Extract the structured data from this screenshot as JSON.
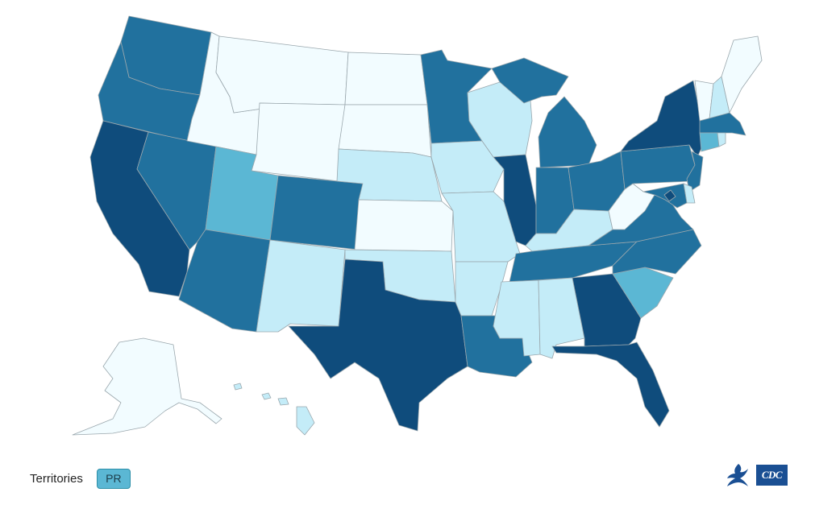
{
  "map": {
    "palette": {
      "level0": "#f2fcff",
      "level1": "#c4ecf8",
      "level2": "#5bb7d4",
      "level3": "#21719e",
      "level4": "#0f4c7c",
      "border": "#9aa7ad"
    },
    "states": [
      {
        "name": "Washington",
        "level": 3
      },
      {
        "name": "Oregon",
        "level": 3
      },
      {
        "name": "California",
        "level": 4
      },
      {
        "name": "Nevada",
        "level": 3
      },
      {
        "name": "Idaho",
        "level": 0
      },
      {
        "name": "Montana",
        "level": 0
      },
      {
        "name": "Wyoming",
        "level": 0
      },
      {
        "name": "Utah",
        "level": 2
      },
      {
        "name": "Arizona",
        "level": 3
      },
      {
        "name": "Colorado",
        "level": 3
      },
      {
        "name": "New Mexico",
        "level": 1
      },
      {
        "name": "North Dakota",
        "level": 0
      },
      {
        "name": "South Dakota",
        "level": 0
      },
      {
        "name": "Nebraska",
        "level": 1
      },
      {
        "name": "Kansas",
        "level": 0
      },
      {
        "name": "Oklahoma",
        "level": 1
      },
      {
        "name": "Texas",
        "level": 4
      },
      {
        "name": "Minnesota",
        "level": 3
      },
      {
        "name": "Iowa",
        "level": 1
      },
      {
        "name": "Missouri",
        "level": 1
      },
      {
        "name": "Arkansas",
        "level": 1
      },
      {
        "name": "Louisiana",
        "level": 3
      },
      {
        "name": "Wisconsin",
        "level": 1
      },
      {
        "name": "Illinois",
        "level": 4
      },
      {
        "name": "Michigan",
        "level": 3
      },
      {
        "name": "Indiana",
        "level": 3
      },
      {
        "name": "Ohio",
        "level": 3
      },
      {
        "name": "Kentucky",
        "level": 1
      },
      {
        "name": "Tennessee",
        "level": 3
      },
      {
        "name": "Mississippi",
        "level": 1
      },
      {
        "name": "Alabama",
        "level": 1
      },
      {
        "name": "Georgia",
        "level": 4
      },
      {
        "name": "Florida",
        "level": 4
      },
      {
        "name": "South Carolina",
        "level": 2
      },
      {
        "name": "North Carolina",
        "level": 3
      },
      {
        "name": "Virginia",
        "level": 3
      },
      {
        "name": "West Virginia",
        "level": 0
      },
      {
        "name": "Pennsylvania",
        "level": 3
      },
      {
        "name": "New York",
        "level": 4
      },
      {
        "name": "Vermont",
        "level": 0
      },
      {
        "name": "New Hampshire",
        "level": 1
      },
      {
        "name": "Maine",
        "level": 0
      },
      {
        "name": "Massachusetts",
        "level": 3
      },
      {
        "name": "Connecticut",
        "level": 2
      },
      {
        "name": "Rhode Island",
        "level": 1
      },
      {
        "name": "New Jersey",
        "level": 3
      },
      {
        "name": "Delaware",
        "level": 1
      },
      {
        "name": "Maryland",
        "level": 3
      },
      {
        "name": "District of Columbia",
        "level": 4
      },
      {
        "name": "Alaska",
        "level": 0
      },
      {
        "name": "Hawaii",
        "level": 1
      }
    ]
  },
  "territories": {
    "label": "Territories",
    "items": [
      {
        "label": "PR",
        "level": 2
      }
    ]
  },
  "logos": {
    "cdc_text": "CDC"
  }
}
